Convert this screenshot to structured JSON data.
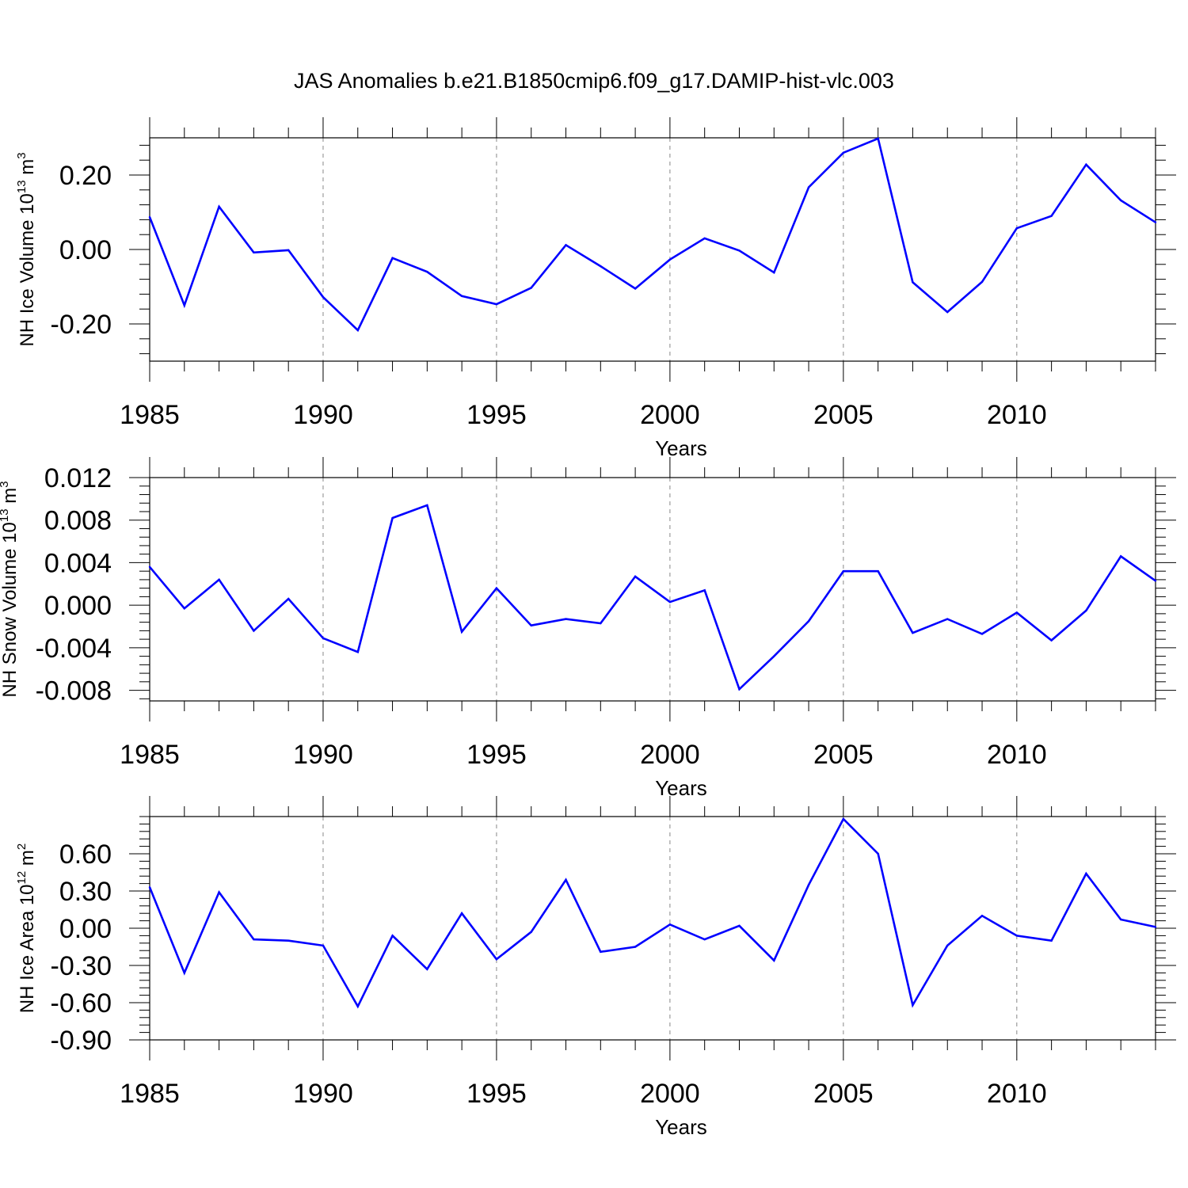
{
  "title": "JAS Anomalies b.e21.B1850cmip6.f09_g17.DAMIP-hist-vlc.003",
  "colors": {
    "line": "#0000ff",
    "axis": "#000000",
    "grid": "#888888",
    "background": "#ffffff"
  },
  "chart_data": [
    {
      "type": "line",
      "title": "JAS Anomalies b.e21.B1850cmip6.f09_g17.DAMIP-hist-vlc.003",
      "xlabel": "Years",
      "ylabel": {
        "text": "NH Ice Volume 10",
        "sup": "13",
        "unit": " m",
        "unit_sup": "3"
      },
      "xlim": [
        1985,
        2014
      ],
      "ylim": [
        -0.3,
        0.3
      ],
      "xticks": [
        "1985",
        "1990",
        "1995",
        "2000",
        "2005",
        "2010"
      ],
      "yticks": [
        "0.20",
        "0.00",
        "-0.20"
      ],
      "grid": "vertical dashed at major x ticks",
      "x": [
        1985,
        1986,
        1987,
        1988,
        1989,
        1990,
        1991,
        1992,
        1993,
        1994,
        1995,
        1996,
        1997,
        1998,
        1999,
        2000,
        2001,
        2002,
        2003,
        2004,
        2005,
        2006,
        2007,
        2008,
        2009,
        2010,
        2011,
        2012,
        2013,
        2014
      ],
      "values": [
        0.087,
        -0.15,
        0.115,
        -0.008,
        -0.002,
        -0.128,
        -0.217,
        -0.023,
        -0.06,
        -0.125,
        -0.147,
        -0.103,
        0.012,
        -0.045,
        -0.105,
        -0.027,
        0.03,
        -0.003,
        -0.062,
        0.167,
        0.26,
        0.298,
        -0.088,
        -0.168,
        -0.087,
        0.057,
        0.09,
        0.228,
        0.132,
        0.073
      ]
    },
    {
      "type": "line",
      "xlabel": "Years",
      "ylabel": {
        "text": "NH Snow Volume 10",
        "sup": "13",
        "unit": " m",
        "unit_sup": "3"
      },
      "xlim": [
        1985,
        2014
      ],
      "ylim": [
        -0.009,
        0.012
      ],
      "xticks": [
        "1985",
        "1990",
        "1995",
        "2000",
        "2005",
        "2010"
      ],
      "yticks": [
        "0.012",
        "0.008",
        "0.004",
        "0.000",
        "-0.004",
        "-0.008"
      ],
      "grid": "vertical dashed at major x ticks",
      "x": [
        1985,
        1986,
        1987,
        1988,
        1989,
        1990,
        1991,
        1992,
        1993,
        1994,
        1995,
        1996,
        1997,
        1998,
        1999,
        2000,
        2001,
        2002,
        2003,
        2004,
        2005,
        2006,
        2007,
        2008,
        2009,
        2010,
        2011,
        2012,
        2013,
        2014
      ],
      "values": [
        0.0036,
        -0.0003,
        0.0024,
        -0.0024,
        0.0006,
        -0.0031,
        -0.0044,
        0.0082,
        0.0094,
        -0.0025,
        0.0016,
        -0.0019,
        -0.0013,
        -0.0017,
        0.0027,
        0.0003,
        0.0014,
        -0.0079,
        -0.0048,
        -0.0015,
        0.0032,
        0.0032,
        -0.0026,
        -0.0013,
        -0.0027,
        -0.0007,
        -0.0033,
        -0.0005,
        0.0046,
        0.0023
      ]
    },
    {
      "type": "line",
      "xlabel": "Years",
      "ylabel": {
        "text": "NH Ice Area 10",
        "sup": "12",
        "unit": " m",
        "unit_sup": "2"
      },
      "xlim": [
        1985,
        2014
      ],
      "ylim": [
        -0.9,
        0.9
      ],
      "xticks": [
        "1985",
        "1990",
        "1995",
        "2000",
        "2005",
        "2010"
      ],
      "yticks": [
        "0.60",
        "0.30",
        "0.00",
        "-0.30",
        "-0.60",
        "-0.90"
      ],
      "grid": "vertical dashed at major x ticks",
      "x": [
        1985,
        1986,
        1987,
        1988,
        1989,
        1990,
        1991,
        1992,
        1993,
        1994,
        1995,
        1996,
        1997,
        1998,
        1999,
        2000,
        2001,
        2002,
        2003,
        2004,
        2005,
        2006,
        2007,
        2008,
        2009,
        2010,
        2011,
        2012,
        2013,
        2014
      ],
      "values": [
        0.33,
        -0.36,
        0.29,
        -0.09,
        -0.1,
        -0.14,
        -0.63,
        -0.06,
        -0.33,
        0.12,
        -0.25,
        -0.03,
        0.39,
        -0.19,
        -0.15,
        0.03,
        -0.09,
        0.02,
        -0.26,
        0.35,
        0.88,
        0.6,
        -0.62,
        -0.14,
        0.1,
        -0.06,
        -0.1,
        0.44,
        0.07,
        0.01
      ]
    }
  ]
}
